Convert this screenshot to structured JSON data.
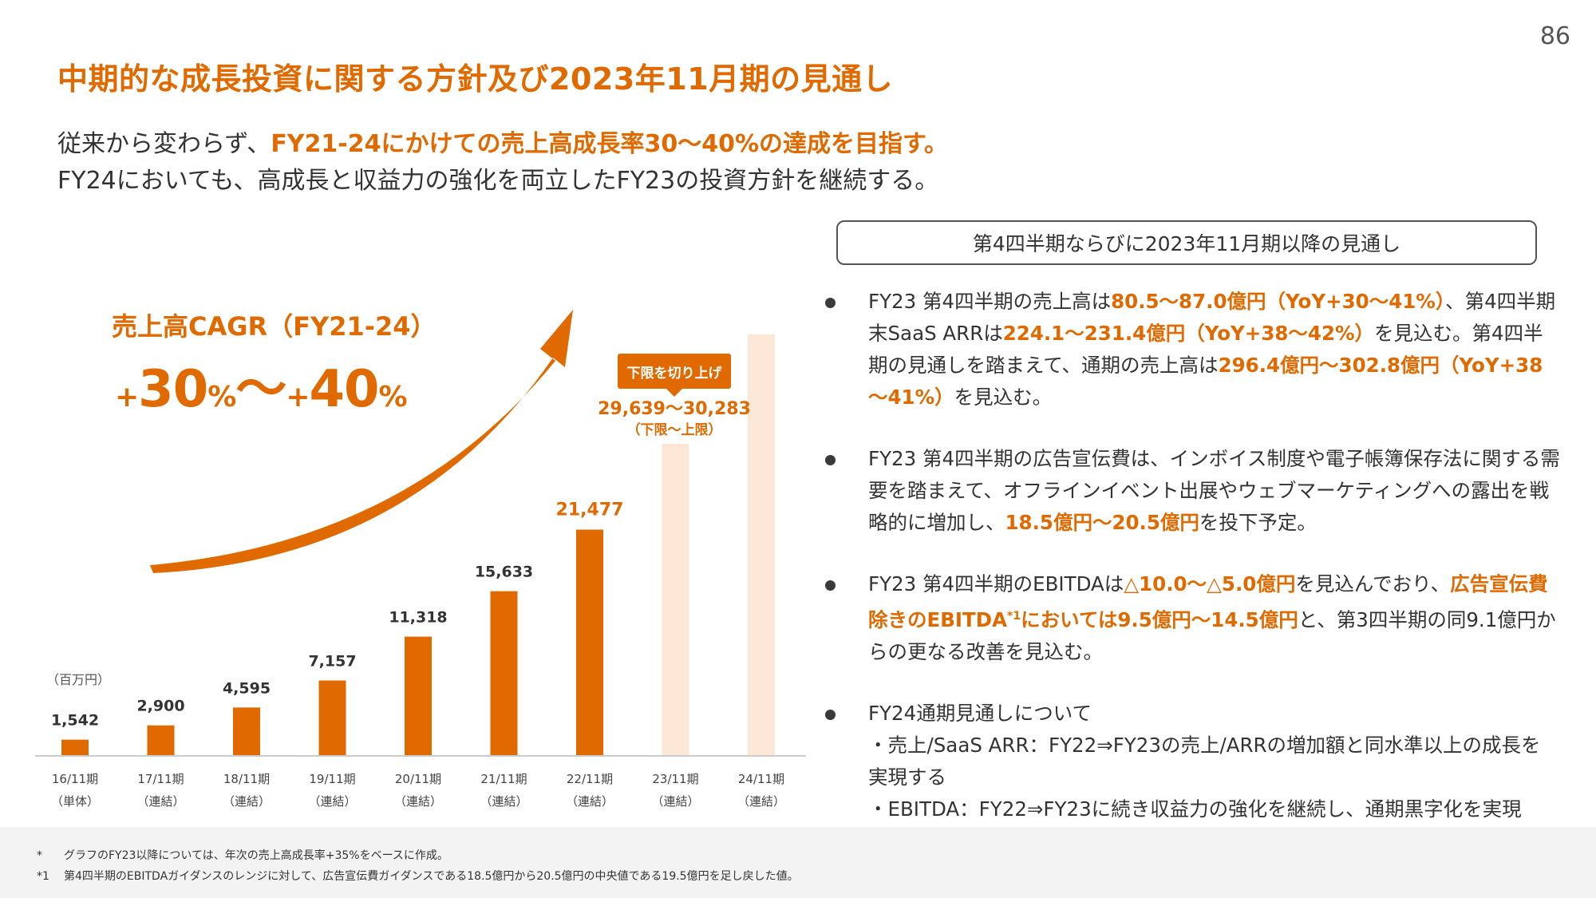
{
  "page_number": "86",
  "title": "中期的な成長投資に関する方針及び2023年11月期の見通し",
  "subtitle": {
    "line1_prefix": "従来から変わらず、",
    "line1_highlight": "FY21-24にかけての売上高成長率30～40%の達成を目指す。",
    "line2": "FY24においても、高成長と収益力の強化を両立したFY23の投資方針を継続する。"
  },
  "cagr": {
    "label": "売上高CAGR（FY21-24）",
    "value_plus1": "+",
    "value_num1": "30",
    "value_pct1": "%",
    "value_tilde": "～",
    "value_plus2": "+",
    "value_num2": "40",
    "value_pct2": "%"
  },
  "chart_data": {
    "type": "bar",
    "title": "",
    "unit": "（百万円）",
    "categories": [
      "16/11期",
      "17/11期",
      "18/11期",
      "19/11期",
      "20/11期",
      "21/11期",
      "22/11期",
      "23/11期",
      "24/11期"
    ],
    "category_sub": [
      "（単体）",
      "（連結）",
      "（連結）",
      "（連結）",
      "（連結）",
      "（連結）",
      "（連結）",
      "（連結）",
      "（連結）"
    ],
    "values": [
      1542,
      2900,
      4595,
      7157,
      11318,
      15633,
      21477,
      29639,
      40000
    ],
    "value_labels": [
      "1,542",
      "2,900",
      "4,595",
      "7,157",
      "11,318",
      "15,633",
      "21,477",
      "",
      ""
    ],
    "projected": [
      false,
      false,
      false,
      false,
      false,
      false,
      false,
      true,
      true
    ],
    "colors": {
      "actual": "#e06a00",
      "projected": "#fde8d7",
      "arrow": "#e06a00",
      "axis": "#cccccc"
    },
    "ylim": [
      0,
      40000
    ],
    "grid": false,
    "legend": "none"
  },
  "forecast": {
    "badge": "下限を切り上げ",
    "range": "29,639～30,283",
    "range_note": "（下限～上限）"
  },
  "outlook": {
    "header": "第4四半期ならびに2023年11月期以降の見通し",
    "b1": {
      "t1": "FY23 第4四半期の売上高は",
      "h1": "80.5～87.0億円（YoY+30～41%）",
      "t2": "、第4四半期末SaaS ARRは",
      "h2": "224.1～231.4億円（YoY+38～42%）",
      "t3": "を見込む。第4四半期の見通しを踏まえて、通期の売上高は",
      "h3": "296.4億円～302.8億円（YoY+38～41%）",
      "t4": "を見込む。"
    },
    "b2": {
      "t1": "FY23 第4四半期の広告宣伝費は、インボイス制度や電子帳簿保存法に関する需要を踏まえて、オフラインイベント出展やウェブマーケティングへの露出を戦略的に増加し、",
      "h1": "18.5億円～20.5億円",
      "t2": "を投下予定。"
    },
    "b3": {
      "t1": "FY23 第4四半期のEBITDAは",
      "h1": "△10.0～△5.0億円",
      "t2": "を見込んでおり、",
      "h2a": "広告宣伝費除きのEBITDA",
      "h2sup": "*1",
      "h2b": "においては9.5億円～14.5億円",
      "t3": "と、第3四半期の同9.1億円からの更なる改善を見込む。"
    },
    "b4": {
      "title": "FY24通期見通しについて",
      "line1": "・売上/SaaS ARR：FY22⇒FY23の売上/ARRの増加額と同水準以上の成長を実現する",
      "line2": "・EBITDA：FY22⇒FY23に続き収益力の強化を継続し、通期黒字化を実現"
    }
  },
  "footnotes": {
    "f1_mark": "*",
    "f1": "グラフのFY23以降については、年次の売上高成長率+35%をベースに作成。",
    "f2_mark": "*1",
    "f2": "第4四半期のEBITDAガイダンスのレンジに対して、広告宣伝費ガイダンスである18.5億円から20.5億円の中央値である19.5億円を足し戻した値。"
  }
}
